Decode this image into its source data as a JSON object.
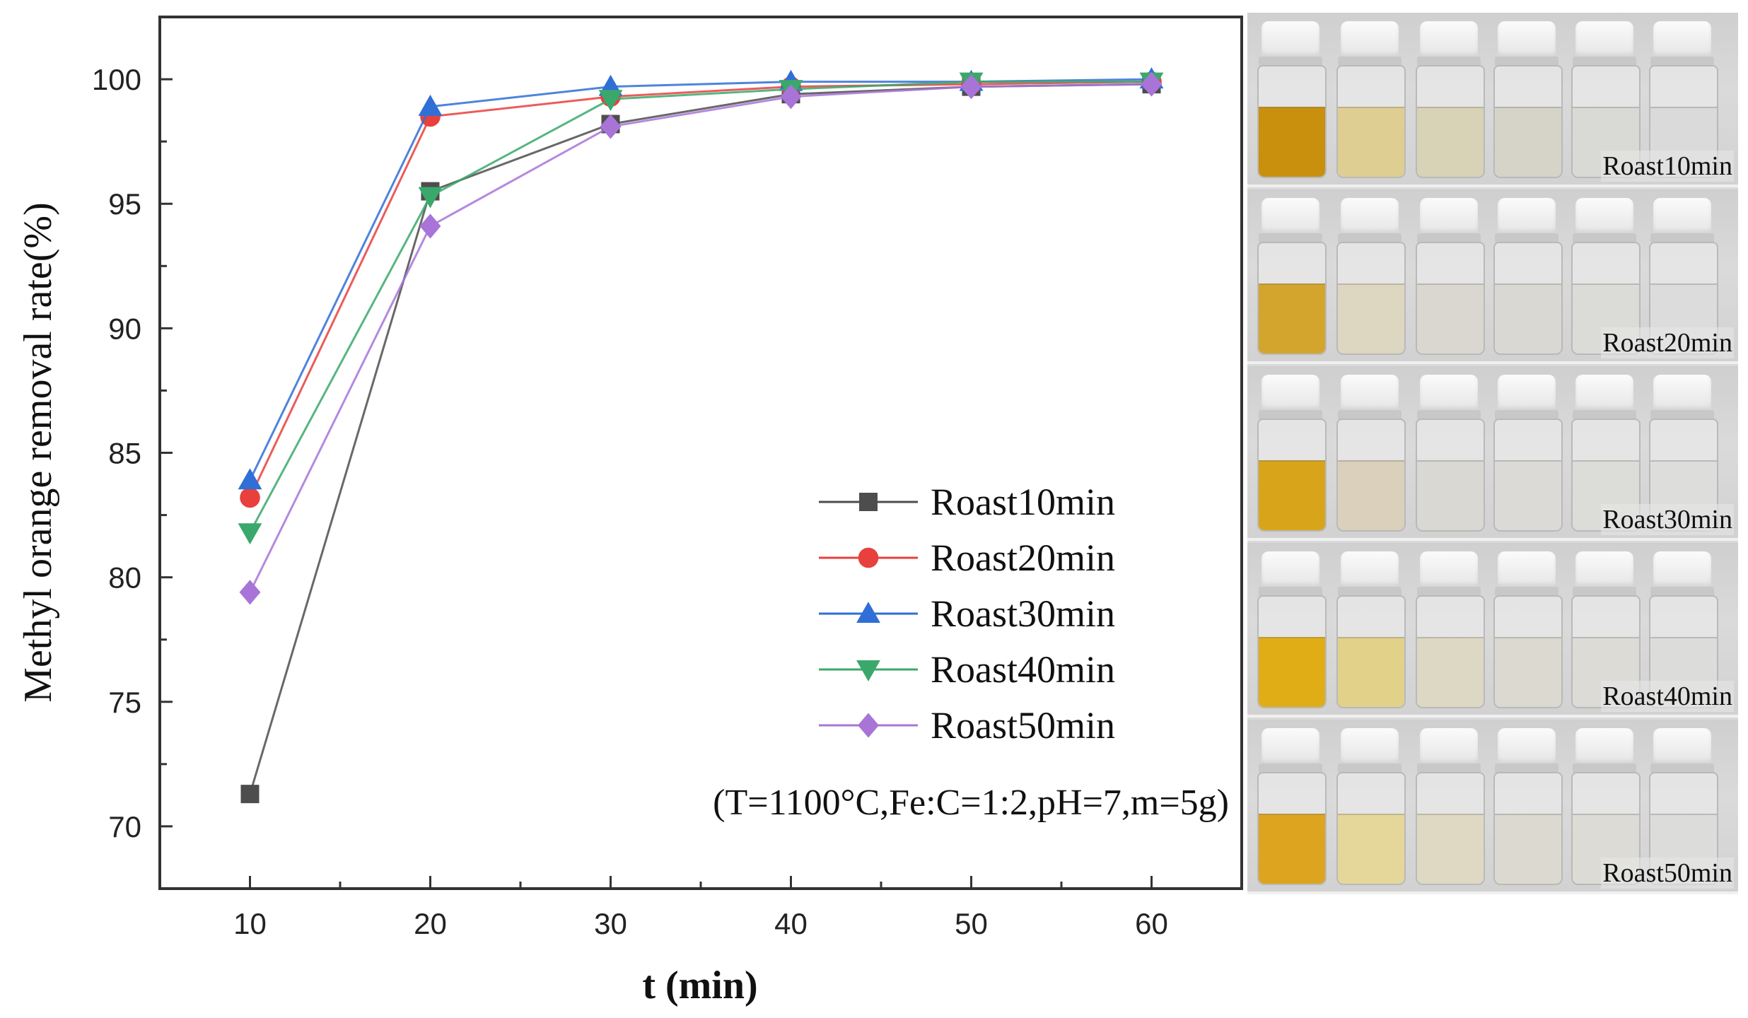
{
  "chart_data": {
    "type": "line",
    "title": "",
    "xlabel": "t (min)",
    "ylabel": "Methyl orange removal rate(%)",
    "x": [
      10,
      20,
      30,
      40,
      50,
      60
    ],
    "xlim": [
      5,
      65
    ],
    "ylim": [
      67.5,
      102.5
    ],
    "xticks": [
      10,
      20,
      30,
      40,
      50,
      60
    ],
    "yticks": [
      70,
      75,
      80,
      85,
      90,
      95,
      100
    ],
    "grid": false,
    "legend_position": "center-right",
    "annotation": "(T=1100°C,Fe:C=1:2,pH=7,m=5g)",
    "series": [
      {
        "name": "Roast10min",
        "marker": "square",
        "color": "#4d4d4d",
        "values": [
          71.3,
          95.5,
          98.2,
          99.4,
          99.7,
          99.8
        ]
      },
      {
        "name": "Roast20min",
        "marker": "circle",
        "color": "#e8403d",
        "values": [
          83.2,
          98.5,
          99.3,
          99.7,
          99.8,
          99.9
        ]
      },
      {
        "name": "Roast30min",
        "marker": "triangle-up",
        "color": "#2f6fd6",
        "values": [
          83.9,
          98.9,
          99.7,
          99.9,
          99.9,
          100.0
        ]
      },
      {
        "name": "Roast40min",
        "marker": "triangle-down",
        "color": "#3aa86a",
        "values": [
          81.8,
          95.3,
          99.2,
          99.6,
          99.9,
          99.9
        ]
      },
      {
        "name": "Roast50min",
        "marker": "diamond",
        "color": "#a874d8",
        "values": [
          79.4,
          94.1,
          98.1,
          99.3,
          99.7,
          99.8
        ]
      }
    ]
  },
  "photos": {
    "rows": [
      {
        "label": "Roast10min",
        "liquids": [
          "#c9900e",
          "#dfce92",
          "#d8d2b6",
          "#d6d4c8",
          "#d9d9d6",
          "#dadada"
        ]
      },
      {
        "label": "Roast20min",
        "liquids": [
          "#d3a52c",
          "#ddd6c0",
          "#d9d7cf",
          "#d9d8d3",
          "#dbdbd8",
          "#dcdcdc"
        ]
      },
      {
        "label": "Roast30min",
        "liquids": [
          "#d8a51a",
          "#dad0bb",
          "#d9d8d3",
          "#dbdad6",
          "#dcdcd8",
          "#dddddb"
        ]
      },
      {
        "label": "Roast40min",
        "liquids": [
          "#e0ad17",
          "#e1d189",
          "#ddd8c4",
          "#dbd9d0",
          "#dcdbd6",
          "#dcdcda"
        ]
      },
      {
        "label": "Roast50min",
        "liquids": [
          "#dca41f",
          "#e5d69a",
          "#dfd9c3",
          "#dcdad0",
          "#dcdbd5",
          "#dcdcda"
        ]
      }
    ]
  }
}
